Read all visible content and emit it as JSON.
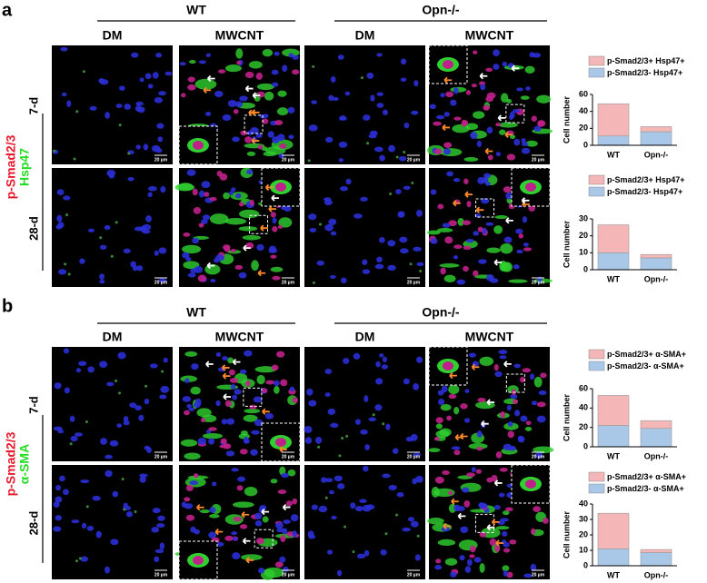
{
  "panels": [
    {
      "label": "a",
      "groups": [
        "WT",
        "Opn-/-"
      ],
      "columns": [
        "DM",
        "MWCNT",
        "DM",
        "MWCNT"
      ],
      "rows": [
        "7-d",
        "28-d"
      ],
      "stain": [
        "p-Smad2/3",
        "Hsp47"
      ]
    },
    {
      "label": "b",
      "groups": [
        "WT",
        "Opn-/-"
      ],
      "columns": [
        "DM",
        "MWCNT",
        "DM",
        "MWCNT"
      ],
      "rows": [
        "7-d",
        "28-d"
      ],
      "stain": [
        "p-Smad2/3",
        "α-SMA"
      ]
    }
  ],
  "scale_bar": "20 µm",
  "chart_data": [
    {
      "type": "stacked-bar",
      "y_label": "Cell number",
      "categories": [
        "WT",
        "Opn-/-"
      ],
      "ylim": [
        0,
        60
      ],
      "yticks": [
        0,
        20,
        40,
        60
      ],
      "series": [
        {
          "name": "p-Smad2/3- Hsp47+",
          "color": "#a9c8e8",
          "values": [
            11,
            16
          ]
        },
        {
          "name": "p-Smad2/3+ Hsp47+",
          "color": "#f4b6b6",
          "values": [
            38,
            6
          ]
        }
      ]
    },
    {
      "type": "stacked-bar",
      "y_label": "Cell number",
      "categories": [
        "WT",
        "Opn-/-"
      ],
      "ylim": [
        0,
        30
      ],
      "yticks": [
        0,
        10,
        20,
        30
      ],
      "series": [
        {
          "name": "p-Smad2/3- Hsp47+",
          "color": "#a9c8e8",
          "values": [
            10,
            7
          ]
        },
        {
          "name": "p-Smad2/3+ Hsp47+",
          "color": "#f4b6b6",
          "values": [
            16.5,
            2
          ]
        }
      ]
    },
    {
      "type": "stacked-bar",
      "y_label": "Cell number",
      "categories": [
        "WT",
        "Opn-/-"
      ],
      "ylim": [
        0,
        60
      ],
      "yticks": [
        0,
        20,
        40,
        60
      ],
      "series": [
        {
          "name": "p-Smad2/3- α-SMA+",
          "color": "#a9c8e8",
          "values": [
            22,
            19
          ]
        },
        {
          "name": "p-Smad2/3+ α-SMA+",
          "color": "#f4b6b6",
          "values": [
            31,
            8
          ]
        }
      ]
    },
    {
      "type": "stacked-bar",
      "y_label": "Cell number",
      "categories": [
        "WT",
        "Opn-/-"
      ],
      "ylim": [
        0,
        40
      ],
      "yticks": [
        0,
        10,
        20,
        30,
        40
      ],
      "series": [
        {
          "name": "p-Smad2/3- α-SMA+",
          "color": "#a9c8e8",
          "values": [
            11,
            8.5
          ]
        },
        {
          "name": "p-Smad2/3+ α-SMA+",
          "color": "#f4b6b6",
          "values": [
            23,
            2
          ]
        }
      ]
    }
  ]
}
